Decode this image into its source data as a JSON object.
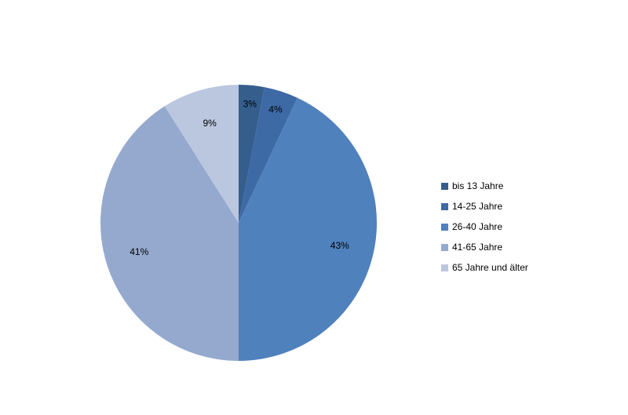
{
  "chart_data": {
    "type": "pie",
    "categories": [
      "bis 13 Jahre",
      "14-25 Jahre",
      "26-40 Jahre",
      "41-65 Jahre",
      "65 Jahre und älter"
    ],
    "values": [
      3,
      4,
      43,
      41,
      9
    ],
    "value_labels": [
      "3%",
      "4%",
      "43%",
      "41%",
      "9%"
    ],
    "colors": [
      "#355e8d",
      "#3d69a5",
      "#4f81bd",
      "#95a9cf",
      "#bbc7df"
    ],
    "legend_position": "right"
  }
}
